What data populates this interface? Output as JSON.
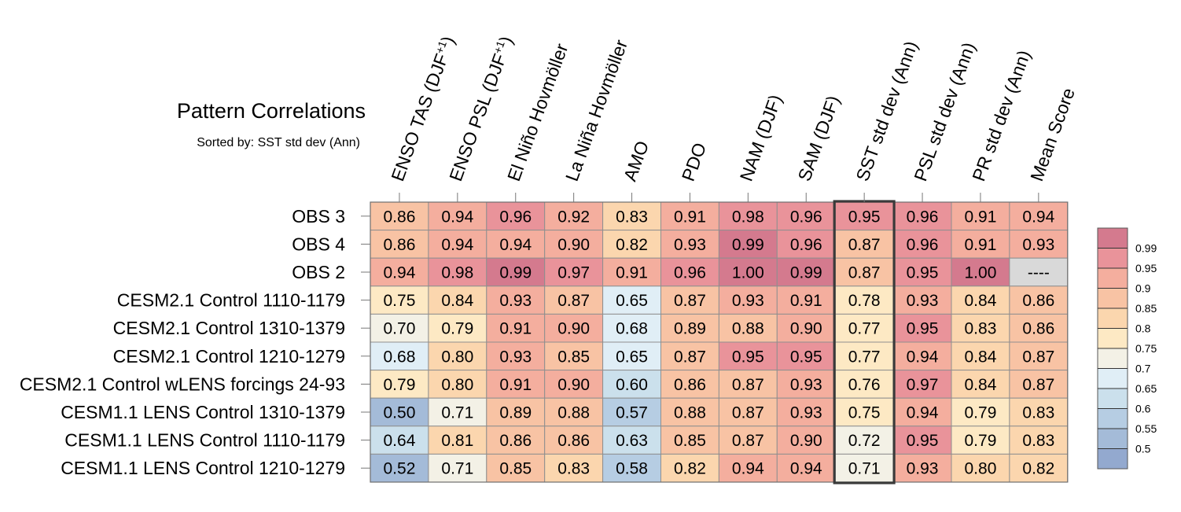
{
  "chart_data": {
    "type": "heatmap",
    "title": "Pattern Correlations",
    "subtitle": "Sorted by: SST std dev (Ann)",
    "highlighted_column": "SST std dev (Ann)",
    "columns": [
      {
        "main": "ENSO TAS (DJF",
        "sup": "+1",
        "tail": ")"
      },
      {
        "main": "ENSO PSL (DJF",
        "sup": "+1",
        "tail": ")"
      },
      {
        "main": "El Niño Hovmöller"
      },
      {
        "main": "La Niña Hovmöller"
      },
      {
        "main": "AMO"
      },
      {
        "main": "PDO"
      },
      {
        "main": "NAM (DJF)"
      },
      {
        "main": "SAM (DJF)"
      },
      {
        "main": "SST std dev (Ann)"
      },
      {
        "main": "PSL std dev (Ann)"
      },
      {
        "main": "PR std dev (Ann)"
      },
      {
        "main": "Mean Score"
      }
    ],
    "rows": [
      {
        "label": "OBS 3",
        "values": [
          "0.86",
          "0.94",
          "0.96",
          "0.92",
          "0.83",
          "0.91",
          "0.98",
          "0.96",
          "0.95",
          "0.96",
          "0.91",
          "0.94"
        ]
      },
      {
        "label": "OBS 4",
        "values": [
          "0.86",
          "0.94",
          "0.94",
          "0.90",
          "0.82",
          "0.93",
          "0.99",
          "0.96",
          "0.87",
          "0.96",
          "0.91",
          "0.93"
        ]
      },
      {
        "label": "OBS 2",
        "values": [
          "0.94",
          "0.98",
          "0.99",
          "0.97",
          "0.91",
          "0.96",
          "1.00",
          "0.99",
          "0.87",
          "0.95",
          "1.00",
          "----"
        ]
      },
      {
        "label": "CESM2.1 Control 1110-1179",
        "values": [
          "0.75",
          "0.84",
          "0.93",
          "0.87",
          "0.65",
          "0.87",
          "0.93",
          "0.91",
          "0.78",
          "0.93",
          "0.84",
          "0.86"
        ]
      },
      {
        "label": "CESM2.1 Control 1310-1379",
        "values": [
          "0.70",
          "0.79",
          "0.91",
          "0.90",
          "0.68",
          "0.89",
          "0.88",
          "0.90",
          "0.77",
          "0.95",
          "0.83",
          "0.86"
        ]
      },
      {
        "label": "CESM2.1 Control 1210-1279",
        "values": [
          "0.68",
          "0.80",
          "0.93",
          "0.85",
          "0.65",
          "0.87",
          "0.95",
          "0.95",
          "0.77",
          "0.94",
          "0.84",
          "0.87"
        ]
      },
      {
        "label": "CESM2.1 Control wLENS forcings 24-93",
        "values": [
          "0.79",
          "0.80",
          "0.91",
          "0.90",
          "0.60",
          "0.86",
          "0.87",
          "0.93",
          "0.76",
          "0.97",
          "0.84",
          "0.87"
        ]
      },
      {
        "label": "CESM1.1 LENS Control 1310-1379",
        "values": [
          "0.50",
          "0.71",
          "0.89",
          "0.88",
          "0.57",
          "0.88",
          "0.87",
          "0.93",
          "0.75",
          "0.94",
          "0.79",
          "0.83"
        ]
      },
      {
        "label": "CESM1.1 LENS Control 1110-1179",
        "values": [
          "0.64",
          "0.81",
          "0.86",
          "0.86",
          "0.63",
          "0.85",
          "0.87",
          "0.90",
          "0.72",
          "0.95",
          "0.79",
          "0.83"
        ]
      },
      {
        "label": "CESM1.1 LENS Control 1210-1279",
        "values": [
          "0.52",
          "0.71",
          "0.85",
          "0.83",
          "0.58",
          "0.82",
          "0.94",
          "0.94",
          "0.71",
          "0.93",
          "0.80",
          "0.82"
        ]
      }
    ],
    "colorbar": {
      "levels": [
        "0.99",
        "0.95",
        "0.9",
        "0.85",
        "0.8",
        "0.75",
        "0.7",
        "0.65",
        "0.6",
        "0.55",
        "0.5"
      ],
      "colors": [
        "#d47a8e",
        "#e9939a",
        "#f4ae9e",
        "#f8c3a4",
        "#fbd6ae",
        "#fde9c4",
        "#f3f1e6",
        "#e0eef6",
        "#cbe0ec",
        "#b6cde3",
        "#a4bbd8",
        "#93a9cf"
      ],
      "missing_color": "#d9d9d9"
    }
  }
}
